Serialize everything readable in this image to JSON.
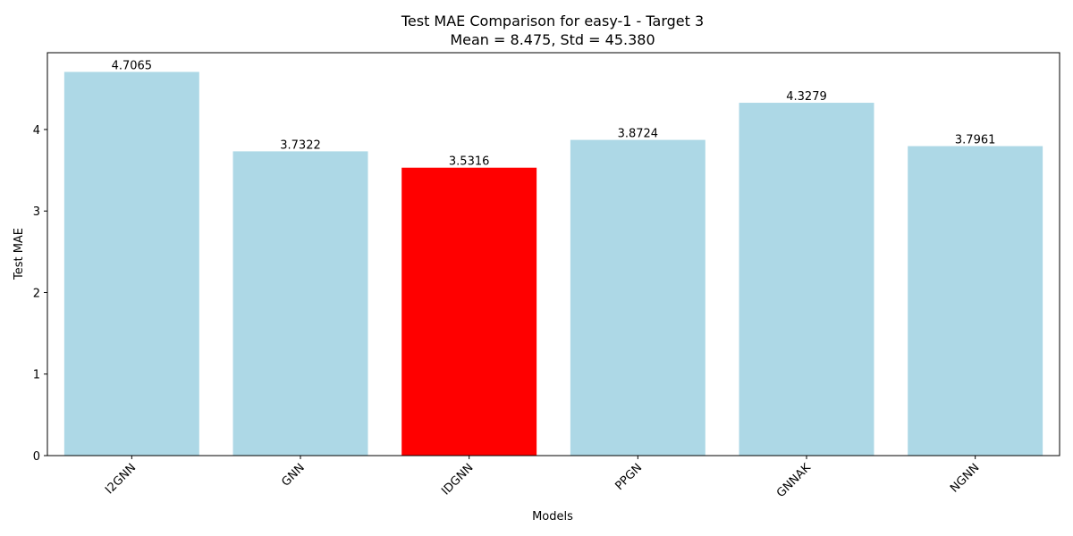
{
  "chart_data": {
    "type": "bar",
    "title": "Test MAE Comparison for easy-1 - Target 3",
    "subtitle": "Mean = 8.475, Std = 45.380",
    "xlabel": "Models",
    "ylabel": "Test MAE",
    "categories": [
      "I2GNN",
      "GNN",
      "IDGNN",
      "PPGN",
      "GNNAK",
      "NGNN"
    ],
    "values": [
      4.7065,
      3.7322,
      3.5316,
      3.8724,
      4.3279,
      3.7961
    ],
    "value_labels": [
      "4.7065",
      "3.7322",
      "3.5316",
      "3.8724",
      "4.3279",
      "3.7961"
    ],
    "ylim": [
      0,
      4.942
    ],
    "yticks": [
      0,
      1,
      2,
      3,
      4
    ],
    "xtick_rotation_deg": 45,
    "grid": false,
    "highlight_index": 2,
    "colors": {
      "default": "#add8e6",
      "highlight": "#ff0000",
      "axis": "#000000"
    }
  }
}
